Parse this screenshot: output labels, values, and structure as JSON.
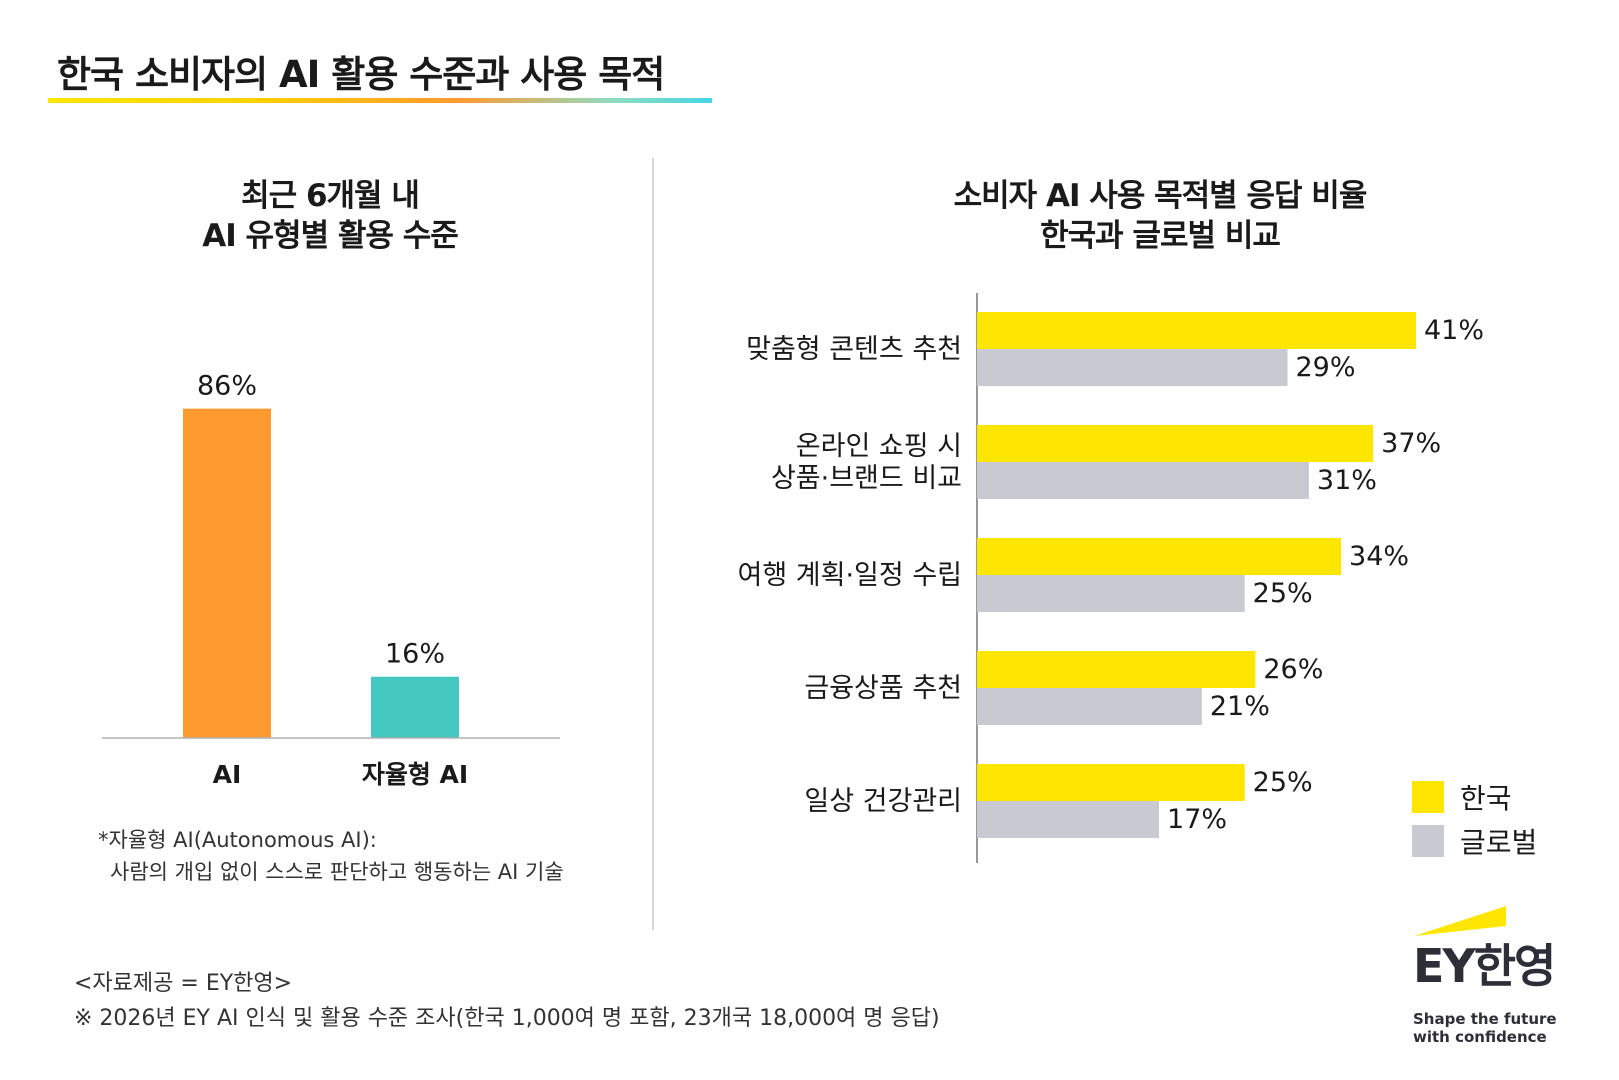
{
  "header": {
    "title": "한국 소비자의 AI 활용 수준과 사용 목적"
  },
  "left_panel": {
    "subtitle_line1": "최근 6개월 내",
    "subtitle_line2": "AI 유형별 활용 수준",
    "note_line1": "*자율형 AI(Autonomous AI):",
    "note_line2": "사람의 개입 없이 스스로 판단하고 행동하는 AI 기술"
  },
  "right_panel": {
    "subtitle_line1": "소비자 AI 사용 목적별 응답 비율",
    "subtitle_line2": "한국과 글로벌 비교"
  },
  "legend": {
    "items": [
      {
        "label": "한국",
        "color": "#ffe600"
      },
      {
        "label": "글로벌",
        "color": "#c9c9d1"
      }
    ]
  },
  "footer": {
    "source": "<자료제공 = EY한영>",
    "survey": "※ 2026년 EY AI 인식 및 활용 수준 조사(한국 1,000여 명 포함, 23개국 18,000여 명 응답)"
  },
  "logo": {
    "text": "EY한영",
    "tagline_line1": "Shape the future",
    "tagline_line2": "with confidence",
    "accent_color": "#ffe600"
  },
  "chart_data": [
    {
      "type": "bar",
      "categories": [
        "AI",
        "자율형 AI"
      ],
      "values": [
        86,
        16
      ],
      "value_labels": [
        "86%",
        "16%"
      ],
      "colors": [
        "#ff9a30",
        "#45c8c0"
      ],
      "title": "최근 6개월 내 AI 유형별 활용 수준",
      "ylim": [
        0,
        100
      ],
      "grid": false
    },
    {
      "type": "bar",
      "orientation": "horizontal",
      "categories": [
        [
          "맞춤형 콘텐츠 추천"
        ],
        [
          "온라인 쇼핑 시",
          "상품·브랜드 비교"
        ],
        [
          "여행 계획·일정 수립"
        ],
        [
          "금융상품 추천"
        ],
        [
          "일상 건강관리"
        ]
      ],
      "series": [
        {
          "name": "한국",
          "values": [
            41,
            37,
            34,
            26,
            25
          ],
          "labels": [
            "41%",
            "37%",
            "34%",
            "26%",
            "25%"
          ],
          "color": "#ffe600"
        },
        {
          "name": "글로벌",
          "values": [
            29,
            31,
            25,
            21,
            17
          ],
          "labels": [
            "29%",
            "31%",
            "25%",
            "21%",
            "17%"
          ],
          "color": "#c9c9d1"
        }
      ],
      "title": "소비자 AI 사용 목적별 응답 비율 한국과 글로벌 비교",
      "xlim": [
        0,
        50
      ],
      "grid": false,
      "legend": "bottom-right"
    }
  ]
}
